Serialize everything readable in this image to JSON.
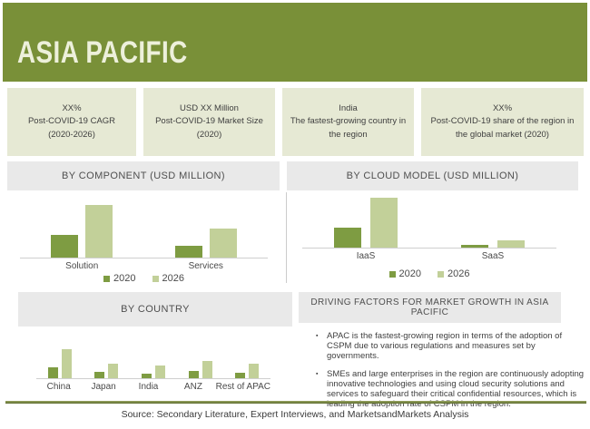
{
  "colors": {
    "brand_green": "#799038",
    "bar_2020": "#7E9C42",
    "bar_2026": "#C2D099",
    "stat_box_beige": "#E6E9D4",
    "panel_gray": "#E9E9E9",
    "title_cream": "#EDF0DB"
  },
  "header": {
    "title": "ASIA PACIFIC"
  },
  "stats": [
    {
      "line1": "XX%",
      "line2": "Post-COVID-19 CAGR (2020-2026)"
    },
    {
      "line1": "USD XX Million",
      "line2": "Post-COVID-19 Market Size (2020)"
    },
    {
      "line1": "India",
      "line2": "The fastest-growing country in the region"
    },
    {
      "line1": "XX%",
      "line2": "Post-COVID-19 share of the region in the global market (2020)"
    }
  ],
  "driving_factors": {
    "title": "DRIVING FACTORS FOR MARKET GROWTH IN ASIA PACIFIC",
    "bullets": [
      "APAC is the fastest-growing region in terms of the adoption of CSPM due to various regulations and measures set by governments.",
      "SMEs and large enterprises in the region are continuously adopting innovative technologies and using cloud security solutions and services to safeguard their critical confidential resources, which is leading the adoption rate of CSPM in the region."
    ]
  },
  "source": "Source: Secondary Literature, Expert Interviews, and MarketsandMarkets Analysis",
  "chart_data": [
    {
      "id": "by_component",
      "type": "bar",
      "title": "BY COMPONENT (USD MILLION)",
      "categories": [
        "Solution",
        "Services"
      ],
      "series": [
        {
          "name": "2020",
          "color": "#7E9C42",
          "values": [
            43,
            22
          ]
        },
        {
          "name": "2026",
          "color": "#C2D099",
          "values": [
            100,
            55
          ]
        }
      ],
      "ylim": [
        0,
        100
      ],
      "grid": false,
      "legend_position": "bottom",
      "note": "No numeric axis labels shown; values are relative estimates with tallest bar = 100."
    },
    {
      "id": "by_cloud_model",
      "type": "bar",
      "title": "BY CLOUD MODEL (USD MILLION)",
      "categories": [
        "IaaS",
        "SaaS"
      ],
      "series": [
        {
          "name": "2020",
          "color": "#7E9C42",
          "values": [
            40,
            5
          ]
        },
        {
          "name": "2026",
          "color": "#C2D099",
          "values": [
            100,
            15
          ]
        }
      ],
      "ylim": [
        0,
        100
      ],
      "grid": false,
      "legend_position": "bottom",
      "note": "No numeric axis labels shown; values are relative estimates with tallest bar = 100."
    },
    {
      "id": "by_country",
      "type": "bar",
      "title": "BY COUNTRY",
      "categories": [
        "China",
        "Japan",
        "India",
        "ANZ",
        "Rest of APAC"
      ],
      "series": [
        {
          "name": "2020",
          "color": "#7E9C42",
          "values": [
            38,
            22,
            16,
            25,
            19
          ]
        },
        {
          "name": "2026",
          "color": "#C2D099",
          "values": [
            100,
            50,
            44,
            59,
            50
          ]
        }
      ],
      "ylim": [
        0,
        100
      ],
      "grid": false,
      "legend_position": "none",
      "note": "No numeric axis labels shown; values are relative estimates with tallest bar = 100."
    }
  ]
}
